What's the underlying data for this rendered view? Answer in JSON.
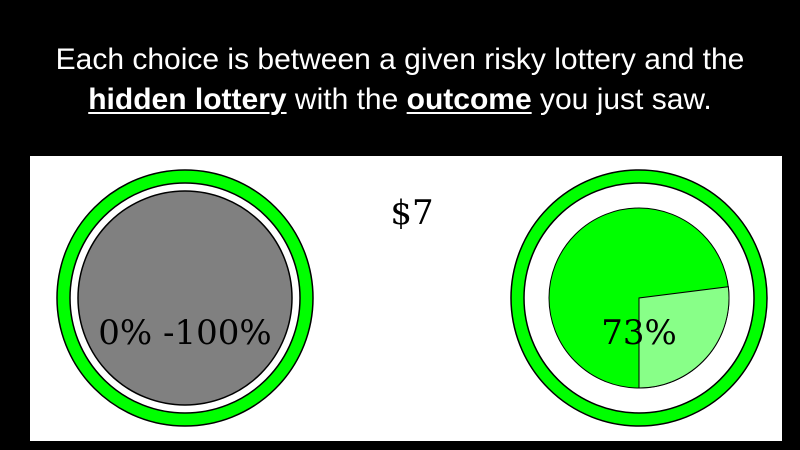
{
  "header": {
    "line1": "Each choice is between a given risky lottery and the",
    "emph1": "hidden lottery",
    "mid": " with the ",
    "emph2": "outcome",
    "end": " you just saw."
  },
  "left_lottery": {
    "label": "0% -100%",
    "ring_color": "#00ff00",
    "fill_color": "#808080"
  },
  "amount": "$7",
  "right_lottery": {
    "label": "73%",
    "win_fraction": 0.73,
    "ring_color": "#00ff00",
    "win_color": "#00ff00",
    "lose_color": "#88ff88"
  }
}
